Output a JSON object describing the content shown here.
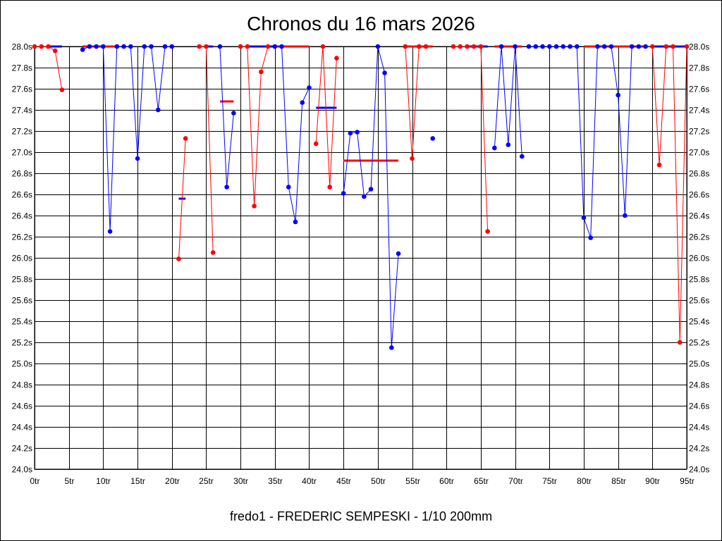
{
  "chart_data": {
    "type": "line",
    "title": "Chronos du 16 mars 2026",
    "subtitle": "fredo1 - FREDERIC SEMPESKI - 1/10 200mm",
    "xlabel": "",
    "ylabel": "",
    "xlim": [
      0,
      95
    ],
    "ylim": [
      24.0,
      28.0
    ],
    "grid": true,
    "legend": "none",
    "x_ticks": [
      0,
      5,
      10,
      15,
      20,
      25,
      30,
      35,
      40,
      45,
      50,
      55,
      60,
      65,
      70,
      75,
      80,
      85,
      90,
      95
    ],
    "x_tick_labels": [
      "0tr",
      "5tr",
      "10tr",
      "15tr",
      "20tr",
      "25tr",
      "30tr",
      "35tr",
      "40tr",
      "45tr",
      "50tr",
      "55tr",
      "60tr",
      "65tr",
      "70tr",
      "75tr",
      "80tr",
      "85tr",
      "90tr",
      "95tr"
    ],
    "y_ticks": [
      24.0,
      24.2,
      24.4,
      24.6,
      24.8,
      25.0,
      25.2,
      25.4,
      25.6,
      25.8,
      26.0,
      26.2,
      26.4,
      26.6,
      26.8,
      27.0,
      27.2,
      27.4,
      27.6,
      27.8,
      28.0
    ],
    "y_tick_labels": [
      "24.0s",
      "24.2s",
      "24.4s",
      "24.6s",
      "24.8s",
      "25.0s",
      "25.2s",
      "25.4s",
      "25.6s",
      "25.8s",
      "26.0s",
      "26.2s",
      "26.4s",
      "26.6s",
      "26.8s",
      "27.0s",
      "27.2s",
      "27.4s",
      "27.6s",
      "27.8s",
      "28.0s"
    ],
    "colors": {
      "red": "#ff0000",
      "blue": "#0000ff",
      "grid": "#000000"
    },
    "series": [
      {
        "color": "red",
        "points": [
          [
            0,
            28.0
          ],
          [
            1,
            28.0
          ],
          [
            2,
            28.0
          ],
          [
            3,
            27.96
          ],
          [
            4,
            27.59
          ]
        ]
      },
      {
        "color": "blue",
        "points": [
          [
            7,
            27.97
          ],
          [
            8,
            28.0
          ],
          [
            9,
            28.0
          ],
          [
            10,
            28.0
          ],
          [
            11,
            26.25
          ],
          [
            12,
            28.0
          ],
          [
            13,
            28.0
          ],
          [
            14,
            28.0
          ],
          [
            15,
            26.94
          ],
          [
            16,
            28.0
          ],
          [
            17,
            28.0
          ],
          [
            18,
            27.4
          ],
          [
            19,
            28.0
          ],
          [
            20,
            28.0
          ]
        ]
      },
      {
        "color": "red",
        "points": [
          [
            21,
            25.99
          ],
          [
            22,
            27.13
          ]
        ]
      },
      {
        "color": "red",
        "points": [
          [
            24,
            28.0
          ],
          [
            25,
            28.0
          ],
          [
            26,
            26.05
          ]
        ]
      },
      {
        "color": "blue",
        "points": [
          [
            27,
            28.0
          ],
          [
            28,
            26.67
          ],
          [
            29,
            27.37
          ]
        ]
      },
      {
        "color": "red",
        "points": [
          [
            30,
            28.0
          ],
          [
            31,
            28.0
          ],
          [
            32,
            26.49
          ],
          [
            33,
            27.76
          ],
          [
            34,
            28.0
          ]
        ]
      },
      {
        "color": "blue",
        "points": [
          [
            35,
            28.0
          ],
          [
            36,
            28.0
          ],
          [
            37,
            26.67
          ],
          [
            38,
            26.34
          ],
          [
            39,
            27.47
          ],
          [
            40,
            27.61
          ]
        ]
      },
      {
        "color": "red",
        "points": [
          [
            41,
            27.08
          ],
          [
            42,
            28.0
          ],
          [
            43,
            26.67
          ],
          [
            44,
            27.89
          ]
        ]
      },
      {
        "color": "blue",
        "points": [
          [
            45,
            26.61
          ],
          [
            46,
            27.18
          ],
          [
            47,
            27.19
          ],
          [
            48,
            26.58
          ],
          [
            49,
            26.65
          ],
          [
            50,
            28.0
          ],
          [
            51,
            27.75
          ],
          [
            52,
            25.15
          ],
          [
            53,
            26.04
          ]
        ]
      },
      {
        "color": "red",
        "points": [
          [
            54,
            28.0
          ],
          [
            55,
            26.94
          ],
          [
            56,
            28.0
          ],
          [
            57,
            28.0
          ]
        ]
      },
      {
        "color": "blue",
        "points": [
          [
            58,
            27.13
          ]
        ]
      },
      {
        "color": "red",
        "points": [
          [
            61,
            28.0
          ],
          [
            62,
            28.0
          ],
          [
            63,
            28.0
          ],
          [
            64,
            28.0
          ],
          [
            65,
            28.0
          ],
          [
            66,
            26.25
          ]
        ]
      },
      {
        "color": "blue",
        "points": [
          [
            67,
            27.04
          ],
          [
            68,
            28.0
          ],
          [
            69,
            27.07
          ],
          [
            70,
            28.0
          ],
          [
            71,
            26.96
          ]
        ]
      },
      {
        "color": "blue",
        "points": [
          [
            72,
            28.0
          ],
          [
            73,
            28.0
          ],
          [
            74,
            28.0
          ],
          [
            75,
            28.0
          ],
          [
            76,
            28.0
          ],
          [
            77,
            28.0
          ],
          [
            78,
            28.0
          ],
          [
            79,
            28.0
          ],
          [
            80,
            26.38
          ],
          [
            81,
            26.19
          ],
          [
            82,
            28.0
          ],
          [
            83,
            28.0
          ],
          [
            84,
            28.0
          ],
          [
            85,
            27.54
          ],
          [
            86,
            26.4
          ],
          [
            87,
            28.0
          ],
          [
            88,
            28.0
          ],
          [
            89,
            28.0
          ]
        ]
      },
      {
        "color": "red",
        "points": [
          [
            90,
            28.0
          ],
          [
            91,
            26.88
          ],
          [
            92,
            28.0
          ],
          [
            93,
            28.0
          ],
          [
            94,
            25.2
          ],
          [
            95,
            28.0
          ]
        ]
      }
    ],
    "avg_marks": [
      {
        "color": "blue",
        "x1": 2,
        "x2": 4,
        "y": 28.0
      },
      {
        "color": "red",
        "x1": 7,
        "x2": 12,
        "y": 28.0
      },
      {
        "color": "blue",
        "x1": 21,
        "x2": 22,
        "y": 26.56
      },
      {
        "color": "blue",
        "x1": 25,
        "x2": 26,
        "y": 28.0
      },
      {
        "color": "red",
        "x1": 27,
        "x2": 29,
        "y": 27.48
      },
      {
        "color": "blue",
        "x1": 31,
        "x2": 35,
        "y": 28.0
      },
      {
        "color": "red",
        "x1": 35,
        "x2": 40,
        "y": 28.0
      },
      {
        "color": "blue",
        "x1": 41,
        "x2": 44,
        "y": 27.42
      },
      {
        "color": "red",
        "x1": 45,
        "x2": 53,
        "y": 26.92
      },
      {
        "color": "red",
        "x1": 54,
        "x2": 58,
        "y": 28.0
      },
      {
        "color": "blue",
        "x1": 63,
        "x2": 66,
        "y": 28.0
      },
      {
        "color": "red",
        "x1": 67,
        "x2": 71,
        "y": 28.0
      },
      {
        "color": "red",
        "x1": 80,
        "x2": 89,
        "y": 28.0
      },
      {
        "color": "blue",
        "x1": 90,
        "x2": 95,
        "y": 28.0
      }
    ]
  }
}
